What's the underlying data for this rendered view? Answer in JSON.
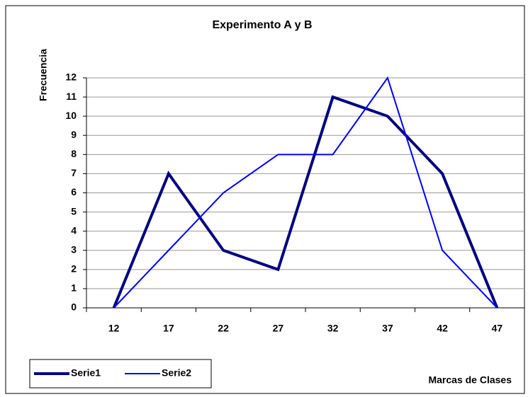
{
  "chart_data": {
    "type": "line",
    "title": "Experimento A y B",
    "x_label": "Marcas de Clases",
    "y_label": "Frecuencia",
    "categories": [
      "12",
      "17",
      "22",
      "27",
      "32",
      "37",
      "42",
      "47"
    ],
    "series": [
      {
        "name": "Serie1",
        "color": "#000080",
        "values": [
          0,
          7,
          3,
          2,
          11,
          10,
          7,
          0
        ]
      },
      {
        "name": "Serie2",
        "color": "#0000ff",
        "values": [
          0,
          3,
          6,
          8,
          8,
          12,
          3,
          0
        ]
      }
    ],
    "ylim": [
      0,
      12
    ],
    "yticks": [
      0,
      1,
      2,
      3,
      4,
      5,
      6,
      7,
      8,
      9,
      10,
      11,
      12
    ],
    "grid": true,
    "legend": "bottom-left"
  }
}
